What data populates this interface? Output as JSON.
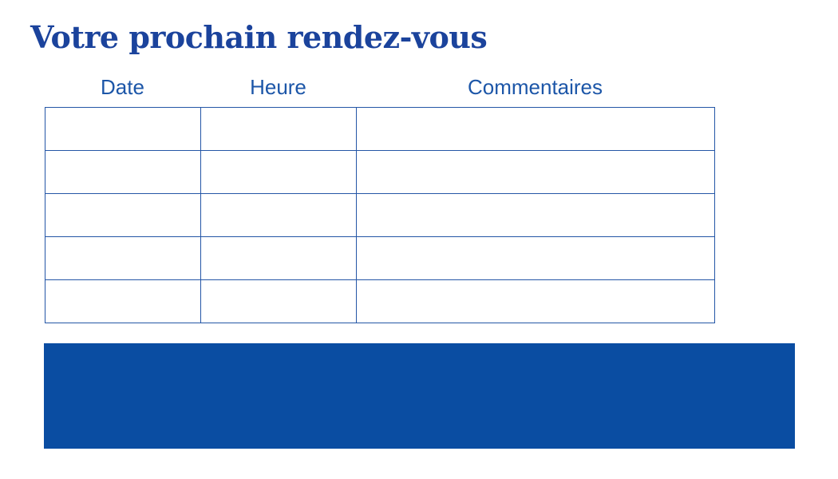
{
  "page": {
    "title": "Votre prochain rendez-vous"
  },
  "table": {
    "headers": [
      "Date",
      "Heure",
      "Commentaires"
    ],
    "row_count": 5,
    "rows": [
      [
        "",
        "",
        ""
      ],
      [
        "",
        "",
        ""
      ],
      [
        "",
        "",
        ""
      ],
      [
        "",
        "",
        ""
      ],
      [
        "",
        "",
        ""
      ]
    ]
  },
  "banner": {
    "text": ""
  },
  "colors": {
    "background": "#ffffff",
    "title_blue": "#1b439c",
    "header_blue": "#1c56a8",
    "table_border_blue": "#2456a6",
    "banner_blue": "#0a4da2"
  }
}
